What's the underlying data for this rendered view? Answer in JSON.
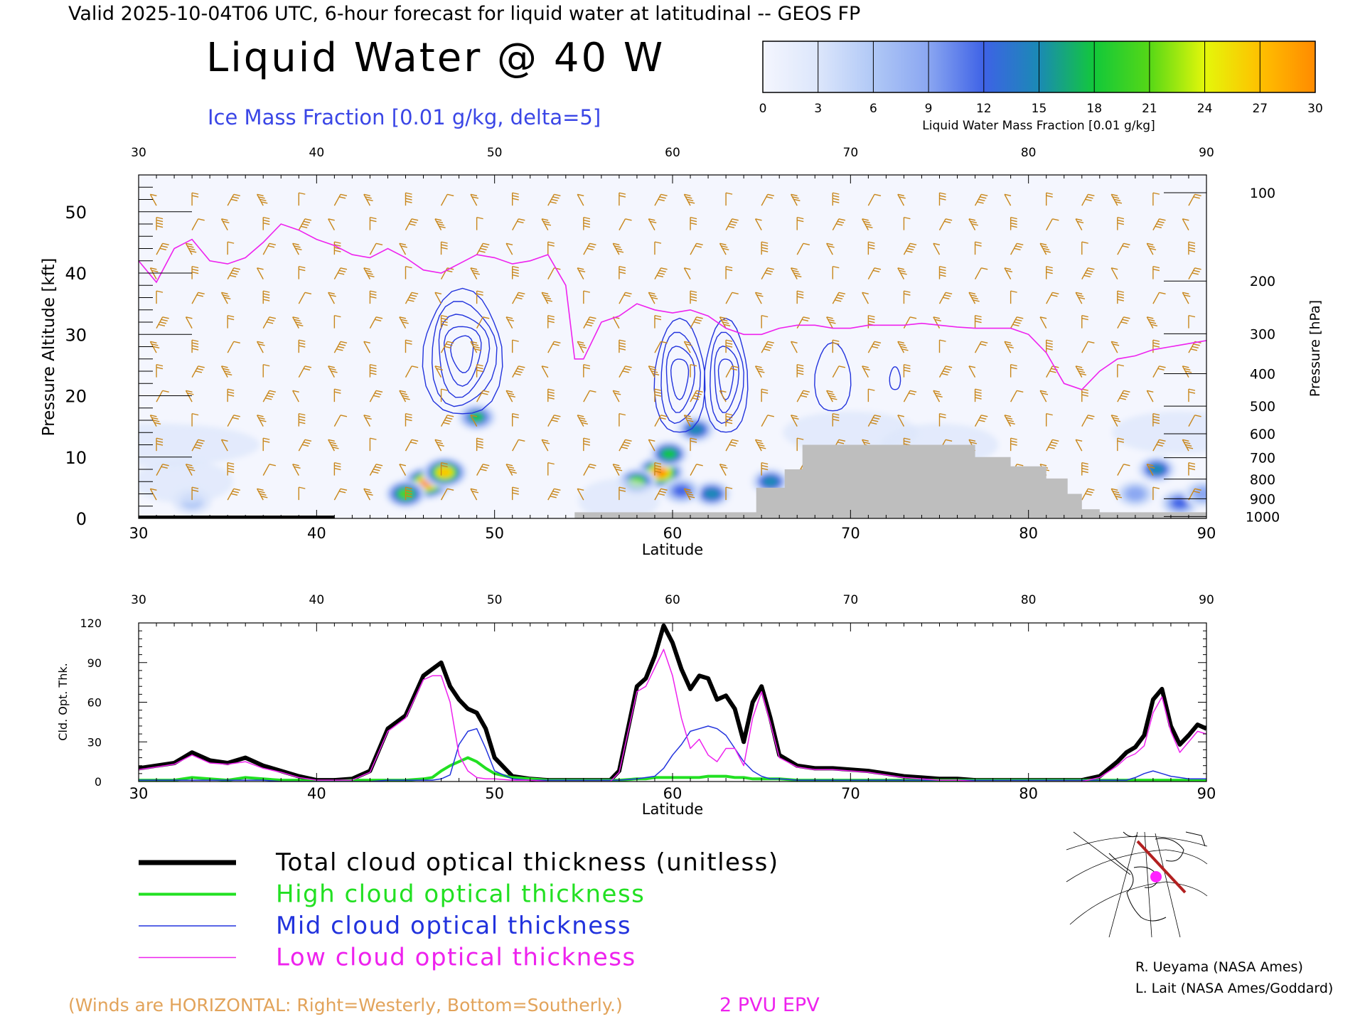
{
  "header": {
    "valid_line": "Valid 2025-10-04T06 UTC, 6-hour forecast for liquid water at latitudinal -- GEOS FP",
    "title": "Liquid Water @ 40 W",
    "subtitle": "Ice Mass Fraction [0.01 g/kg, delta=5]"
  },
  "colorbar": {
    "ticks": [
      "0",
      "3",
      "6",
      "9",
      "12",
      "15",
      "18",
      "21",
      "24",
      "27",
      "30"
    ],
    "label": "Liquid Water Mass Fraction [0.01 g/kg]",
    "colors": [
      "#f4f6fe",
      "#dce6fb",
      "#b0c8f6",
      "#8aa6f1",
      "#3e62e6",
      "#1a8ab4",
      "#12c83a",
      "#56d816",
      "#e4f70a",
      "#ffc000",
      "#ff8a00",
      "#ff2a00"
    ]
  },
  "footer": {
    "winds_note": "(Winds are HORIZONTAL: Right=Westerly, Bottom=Southerly.)",
    "epv_label": "2 PVU EPV",
    "credit1": "R. Ueyama (NASA Ames)",
    "credit2": "L. Lait (NASA Ames/Goddard)"
  },
  "legend": {
    "items": [
      {
        "label": "Total cloud optical thickness (unitless)",
        "color": "#000000"
      },
      {
        "label": "High cloud optical thickness",
        "color": "#22e022"
      },
      {
        "label": "Mid cloud optical thickness",
        "color": "#2233dd"
      },
      {
        "label": "Low cloud optical thickness",
        "color": "#ee22ee"
      }
    ]
  },
  "chart_data": [
    {
      "type": "heatmap",
      "title": "Liquid Water @ 40 W",
      "xlabel": "Latitude",
      "ylabel": "Pressure Altitude [kft]",
      "y2label": "Pressure [hPa]",
      "xlim": [
        30,
        90
      ],
      "ylim": [
        0,
        56
      ],
      "x_ticks": [
        "30",
        "40",
        "50",
        "60",
        "70",
        "80",
        "90"
      ],
      "y_ticks": [
        "0",
        "10",
        "20",
        "30",
        "40",
        "50"
      ],
      "y2_ticks": [
        "100",
        "200",
        "300",
        "400",
        "500",
        "600",
        "700",
        "800",
        "900",
        "1000"
      ],
      "y2_tick_kft": [
        53.1,
        38.7,
        30.1,
        23.6,
        18.3,
        13.8,
        9.9,
        6.4,
        3.2,
        0.3
      ],
      "liquid_water_blobs": [
        {
          "lat": 46.2,
          "kft": 5.8,
          "value": 27
        },
        {
          "lat": 45.0,
          "kft": 4.0,
          "value": 20
        },
        {
          "lat": 47.2,
          "kft": 7.5,
          "value": 24
        },
        {
          "lat": 49.0,
          "kft": 16.5,
          "value": 15
        },
        {
          "lat": 59.3,
          "kft": 7.5,
          "value": 27
        },
        {
          "lat": 58.0,
          "kft": 6.0,
          "value": 18
        },
        {
          "lat": 59.8,
          "kft": 10.5,
          "value": 16
        },
        {
          "lat": 61.3,
          "kft": 14.5,
          "value": 13
        },
        {
          "lat": 62.2,
          "kft": 4.0,
          "value": 13
        },
        {
          "lat": 60.5,
          "kft": 4.5,
          "value": 11
        },
        {
          "lat": 65.5,
          "kft": 6.0,
          "value": 13
        },
        {
          "lat": 87.2,
          "kft": 8.0,
          "value": 13
        },
        {
          "lat": 88.5,
          "kft": 2.5,
          "value": 12
        },
        {
          "lat": 86.0,
          "kft": 4.0,
          "value": 8
        },
        {
          "lat": 33.0,
          "kft": 2.8,
          "value": 5
        },
        {
          "lat": 89.8,
          "kft": 4.0,
          "value": 9
        }
      ],
      "ice_contours": [
        {
          "lat": 48.2,
          "kft": 28.0,
          "rlat": 2.2,
          "rkft": 5.5,
          "levels": 5
        },
        {
          "lat": 60.4,
          "kft": 24.0,
          "rlat": 1.4,
          "rkft": 5.0,
          "levels": 4
        },
        {
          "lat": 63.0,
          "kft": 24.0,
          "rlat": 1.2,
          "rkft": 5.0,
          "levels": 4
        },
        {
          "lat": 69.0,
          "kft": 23.5,
          "rlat": 1.0,
          "rkft": 3.0,
          "levels": 1
        },
        {
          "lat": 72.5,
          "kft": 23.0,
          "rlat": 0.3,
          "rkft": 1.0,
          "levels": 1
        }
      ],
      "epv_2pvu_lat": [
        30,
        31,
        32,
        33,
        34,
        35,
        36,
        37,
        38,
        39,
        40,
        41,
        42,
        43,
        44,
        45,
        46,
        47,
        48,
        49,
        50,
        51,
        52,
        53,
        54,
        54.5,
        55,
        56,
        57,
        58,
        59,
        60,
        61,
        62,
        63,
        64,
        65,
        66,
        67,
        68,
        69,
        70,
        71,
        72,
        73,
        74,
        75,
        76,
        77,
        78,
        79,
        80,
        81,
        82,
        83,
        84,
        85,
        86,
        87,
        88,
        89,
        90
      ],
      "epv_2pvu_kft": [
        42,
        38.5,
        44,
        45.5,
        42,
        41.5,
        42.5,
        45,
        48,
        47,
        45.5,
        44.5,
        43,
        42.5,
        44,
        42.5,
        40.5,
        40,
        41.5,
        43,
        42.5,
        41.5,
        42,
        43,
        38,
        26,
        26,
        32,
        33,
        35,
        34,
        33.5,
        34,
        33,
        31,
        30,
        30,
        31,
        31.5,
        31.5,
        31,
        31,
        31.5,
        31.5,
        31.5,
        31.8,
        31.5,
        31.2,
        31,
        31,
        31,
        30,
        27,
        22,
        21,
        24,
        26,
        26.5,
        27.5,
        28,
        28.5,
        29
      ],
      "terrain_lat": [
        30,
        54.5,
        54.5,
        64.7,
        64.7,
        66.3,
        66.3,
        67.3,
        67.3,
        77,
        77,
        79,
        79,
        81,
        81,
        82.2,
        82.2,
        83,
        83,
        84,
        84,
        90
      ],
      "terrain_kft": [
        0,
        0,
        1,
        1,
        5,
        5,
        8,
        8,
        12,
        12,
        10,
        10,
        8.5,
        8.5,
        6.5,
        6.5,
        4,
        4,
        1.5,
        1.5,
        1,
        1
      ],
      "wind_lat": [
        31,
        33,
        35,
        37,
        39,
        41,
        43,
        45,
        47,
        49,
        51,
        53,
        55,
        57,
        59,
        61,
        63,
        65,
        67,
        69,
        71,
        73,
        75,
        77,
        79,
        81,
        83,
        85,
        87,
        89
      ],
      "wind_kft": [
        3,
        7,
        11,
        15,
        19,
        23,
        27,
        31,
        35,
        39,
        43,
        47,
        51
      ],
      "wind_color": "#c8861a"
    },
    {
      "type": "line",
      "xlabel": "Latitude",
      "ylabel": "Cld. Opt. Thk.",
      "xlim": [
        30,
        90
      ],
      "ylim": [
        0,
        120
      ],
      "x_ticks": [
        "30",
        "40",
        "50",
        "60",
        "70",
        "80",
        "90"
      ],
      "y_ticks": [
        "0",
        "30",
        "60",
        "90",
        "120"
      ],
      "x": [
        30,
        31,
        32,
        33,
        34,
        35,
        36,
        37,
        38,
        39,
        40,
        41,
        42,
        43,
        44,
        45,
        46,
        46.5,
        47,
        47.5,
        48,
        48.5,
        49,
        49.5,
        50,
        51,
        52,
        53,
        54,
        55,
        56,
        56.5,
        57,
        58,
        58.5,
        59,
        59.5,
        60,
        60.5,
        61,
        61.5,
        62,
        62.5,
        63,
        63.5,
        64,
        64.5,
        65,
        65.5,
        66,
        67,
        68,
        69,
        70,
        71,
        72,
        73,
        74,
        75,
        76,
        77,
        78,
        79,
        80,
        81,
        82,
        83,
        84,
        85,
        85.5,
        86,
        86.5,
        87,
        87.5,
        88,
        88.5,
        89,
        89.5,
        90
      ],
      "series": [
        {
          "name": "Total cloud optical thickness (unitless)",
          "color": "#000000",
          "values": [
            10,
            12,
            14,
            22,
            16,
            14,
            18,
            12,
            8,
            4,
            1,
            1,
            2,
            8,
            40,
            50,
            80,
            85,
            90,
            72,
            62,
            55,
            52,
            40,
            18,
            4,
            2,
            1,
            1,
            1,
            1,
            1,
            8,
            72,
            78,
            95,
            118,
            105,
            85,
            70,
            80,
            78,
            62,
            65,
            55,
            30,
            60,
            72,
            48,
            20,
            12,
            10,
            10,
            9,
            8,
            6,
            4,
            3,
            2,
            2,
            1,
            1,
            1,
            1,
            1,
            1,
            1,
            4,
            15,
            22,
            26,
            35,
            62,
            70,
            42,
            28,
            35,
            43,
            40
          ]
        },
        {
          "name": "High cloud optical thickness",
          "color": "#22e022",
          "values": [
            1,
            1,
            1,
            3,
            2,
            1,
            3,
            2,
            1,
            1,
            0,
            0,
            1,
            1,
            1,
            1,
            2,
            3,
            8,
            12,
            15,
            18,
            15,
            10,
            6,
            3,
            2,
            1,
            1,
            1,
            1,
            1,
            1,
            2,
            2,
            3,
            3,
            3,
            3,
            3,
            3,
            4,
            4,
            4,
            3,
            3,
            2,
            2,
            2,
            2,
            1,
            1,
            1,
            1,
            1,
            1,
            1,
            1,
            1,
            1,
            1,
            1,
            1,
            1,
            1,
            1,
            1,
            1,
            1,
            1,
            1,
            1,
            1,
            1,
            1,
            1,
            1,
            1,
            1
          ]
        },
        {
          "name": "Mid cloud optical thickness",
          "color": "#2233dd",
          "values": [
            1,
            1,
            1,
            1,
            1,
            1,
            1,
            1,
            0,
            0,
            0,
            0,
            0,
            0,
            1,
            1,
            1,
            1,
            2,
            5,
            28,
            38,
            40,
            25,
            8,
            2,
            1,
            1,
            1,
            1,
            1,
            1,
            1,
            2,
            3,
            4,
            10,
            20,
            28,
            38,
            40,
            42,
            40,
            35,
            25,
            15,
            8,
            4,
            2,
            2,
            1,
            1,
            1,
            1,
            1,
            1,
            1,
            1,
            1,
            1,
            1,
            1,
            1,
            1,
            1,
            1,
            1,
            1,
            1,
            1,
            3,
            6,
            8,
            6,
            4,
            3,
            2,
            2,
            2
          ]
        },
        {
          "name": "Low cloud optical thickness",
          "color": "#ee22ee",
          "values": [
            9,
            11,
            13,
            20,
            14,
            13,
            15,
            10,
            7,
            3,
            1,
            1,
            1,
            7,
            38,
            48,
            77,
            80,
            80,
            60,
            20,
            8,
            3,
            2,
            2,
            1,
            1,
            0,
            0,
            0,
            0,
            0,
            7,
            68,
            72,
            86,
            100,
            80,
            48,
            25,
            32,
            20,
            15,
            25,
            25,
            12,
            48,
            68,
            44,
            18,
            11,
            9,
            9,
            8,
            7,
            5,
            3,
            2,
            1,
            1,
            0,
            0,
            0,
            0,
            0,
            0,
            0,
            3,
            12,
            18,
            21,
            27,
            52,
            64,
            38,
            22,
            30,
            38,
            36
          ]
        }
      ]
    }
  ]
}
